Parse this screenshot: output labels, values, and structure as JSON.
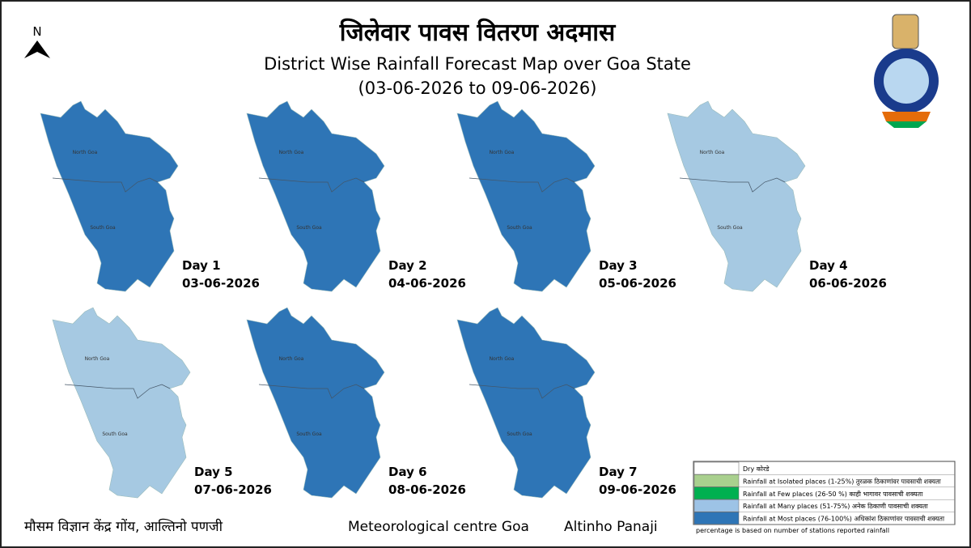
{
  "header": {
    "title_hindi": "जिलेवार पावस वितरण अदमास",
    "title_english": "District Wise Rainfall Forecast Map over Goa State",
    "date_range": "(03-06-2026 to 09-06-2026)"
  },
  "north_arrow": "N",
  "districts": [
    "North Goa",
    "South Goa"
  ],
  "maps": [
    {
      "day": "Day 1",
      "date": "03-06-2026",
      "color": "#2e75b6"
    },
    {
      "day": "Day 2",
      "date": "04-06-2026",
      "color": "#2e75b6"
    },
    {
      "day": "Day 3",
      "date": "05-06-2026",
      "color": "#2e75b6"
    },
    {
      "day": "Day 4",
      "date": "06-06-2026",
      "color": "#a6c9e2"
    },
    {
      "day": "Day 5",
      "date": "07-06-2026",
      "color": "#a6c9e2"
    },
    {
      "day": "Day 6",
      "date": "08-06-2026",
      "color": "#2e75b6"
    },
    {
      "day": "Day 7",
      "date": "09-06-2026",
      "color": "#2e75b6"
    }
  ],
  "legend": {
    "items": [
      {
        "label": "Dry कोरडे",
        "color": "#ffffff"
      },
      {
        "label": "Rainfall at Isolated places  (1-25%) तुरळक ठिकाणांवर पावसाची शक्यता",
        "color": "#a9d08e"
      },
      {
        "label": "Rainfall at Few places (26-50 %) काही भागावर पावसाची शक्यता",
        "color": "#00b050"
      },
      {
        "label": "Rainfall at Many places (51-75%) अनेक ठिकाणी पावसाची शक्यता",
        "color": "#9dc3e6"
      },
      {
        "label": "Rainfall at Most places (76-100%) अधिकांश ठिकाणांवर पावसाची शक्यता",
        "color": "#2e75b6"
      }
    ],
    "note": "percentage is based on number of stations reported rainfall"
  },
  "footer": {
    "hindi": "मौसम विज्ञान केंद्र गोंय, आल्तिनो पणजी",
    "office": "Meteorological centre Goa",
    "location": "Altinho Panaji"
  }
}
